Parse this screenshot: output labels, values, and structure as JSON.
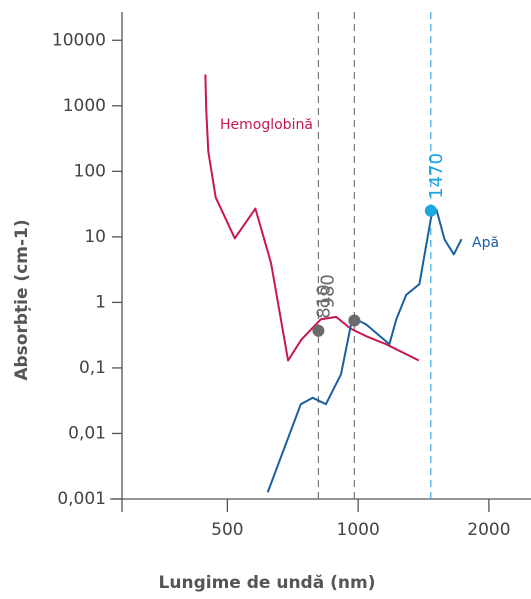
{
  "chart_data": {
    "type": "line",
    "x_label": "Lungime de undă (nm)",
    "y_label": "Absorbție (cm-1)",
    "x_scale": "log",
    "y_scale": "log",
    "xlim": [
      286,
      2500
    ],
    "ylim": [
      0.001,
      27000
    ],
    "xticks": [
      500,
      1000,
      2000
    ],
    "yticks": [
      {
        "value": 0.001,
        "label": "0,001"
      },
      {
        "value": 0.01,
        "label": "0,01"
      },
      {
        "value": 0.1,
        "label": "0,1"
      },
      1,
      10,
      100,
      1000,
      10000
    ],
    "series": [
      {
        "name": "Hemoglobină",
        "color": "#c8174f",
        "x": [
          445,
          447,
          452,
          470,
          520,
          580,
          630,
          690,
          740,
          820,
          890,
          960,
          1050,
          1160,
          1380
        ],
        "values": [
          3000,
          890,
          200,
          40,
          9.5,
          27,
          4,
          0.13,
          0.27,
          0.55,
          0.6,
          0.4,
          0.3,
          0.23,
          0.13
        ]
      },
      {
        "name": "Apă",
        "color": "#1a5fa3",
        "x": [
          619,
          738,
          786,
          843,
          913,
          963,
          990,
          1044,
          1180,
          1224,
          1290,
          1384,
          1476,
          1515,
          1581,
          1660,
          1730
        ],
        "values": [
          0.00126,
          0.028,
          0.035,
          0.028,
          0.08,
          0.46,
          0.55,
          0.46,
          0.23,
          0.55,
          1.3,
          1.9,
          22,
          26,
          9.1,
          5.4,
          9.2
        ]
      }
    ],
    "markers": [
      {
        "x": 810,
        "y": 0.37,
        "color": "#6b6b6b"
      },
      {
        "x": 980,
        "y": 0.53,
        "color": "#6b6b6b"
      },
      {
        "x": 1470,
        "y": 25,
        "color": "#1aa7e0"
      }
    ]
  }
}
